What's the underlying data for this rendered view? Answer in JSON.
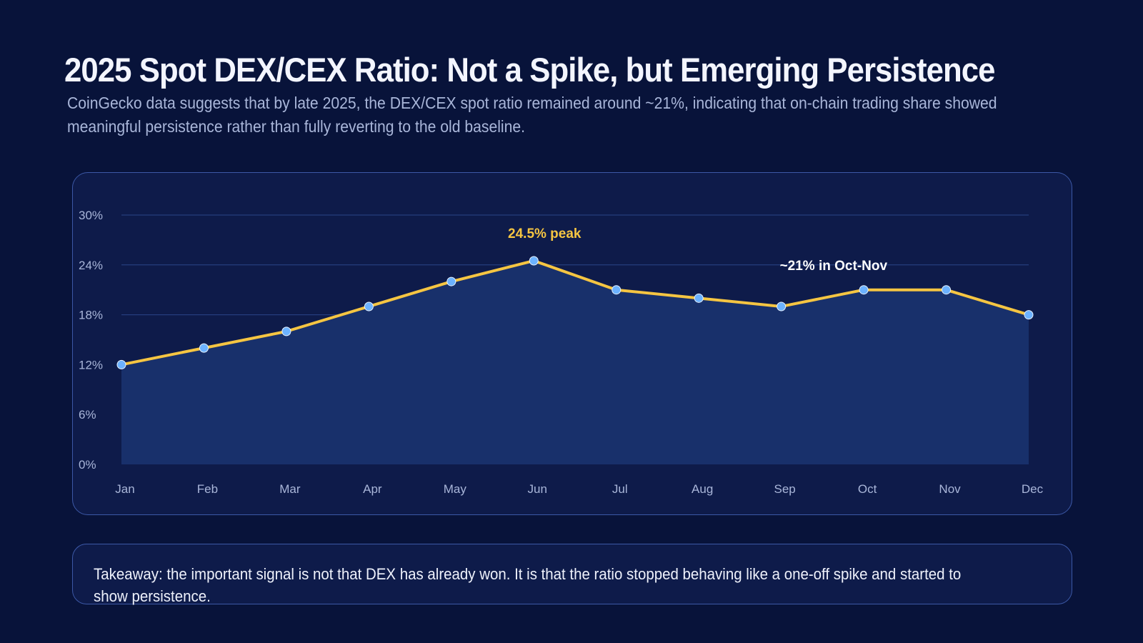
{
  "header": {
    "title": "2025 Spot DEX/CEX Ratio: Not a Spike, but Emerging Persistence",
    "subtitle": "CoinGecko data suggests that by late 2025, the DEX/CEX spot ratio remained around ~21%, indicating that on-chain trading share showed meaningful persistence rather than fully reverting to the old baseline."
  },
  "chart_data": {
    "type": "area",
    "categories": [
      "Jan",
      "Feb",
      "Mar",
      "Apr",
      "May",
      "Jun",
      "Jul",
      "Aug",
      "Sep",
      "Oct",
      "Nov",
      "Dec"
    ],
    "values": [
      12,
      14,
      16,
      19,
      22,
      24.5,
      21,
      20,
      19,
      21,
      21,
      18
    ],
    "y_ticks": [
      "0%",
      "6%",
      "12%",
      "18%",
      "24%",
      "30%"
    ],
    "ylim": [
      0,
      30
    ],
    "grid": true,
    "annotations": [
      {
        "text": "24.5% peak",
        "at": "Jun",
        "color": "#f5c542"
      },
      {
        "text": "~21% in Oct-Nov",
        "at": "Oct-Nov",
        "color": "#ffffff"
      }
    ],
    "colors": {
      "line": "#f5c542",
      "fill": "#18306b",
      "marker": "#6cb2ff",
      "grid": "#2a4488"
    }
  },
  "takeaway": {
    "text": "Takeaway: the important signal is not that DEX has already won. It is that the ratio stopped behaving like a one-off spike and started to show persistence."
  }
}
